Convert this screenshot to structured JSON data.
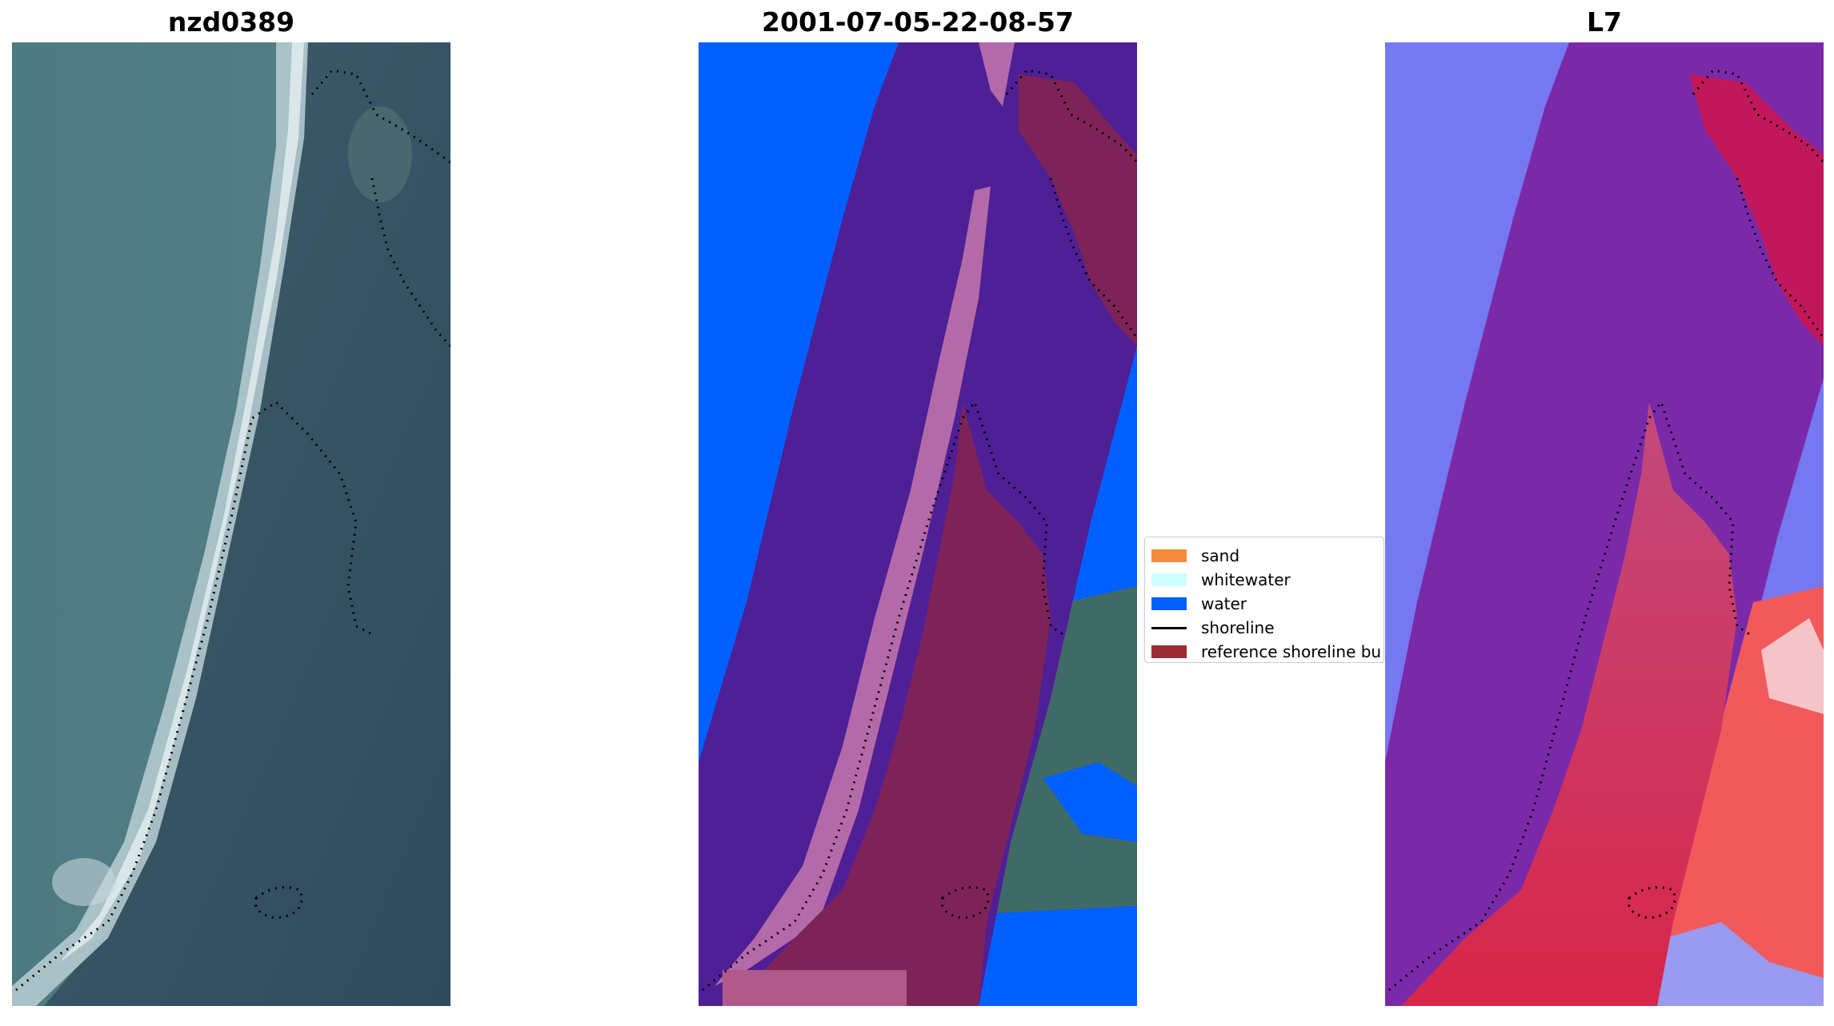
{
  "panels": [
    {
      "title": "nzd0389"
    },
    {
      "title": "2001-07-05-22-08-57"
    },
    {
      "title": "L7"
    }
  ],
  "legend": {
    "items": [
      {
        "label": "sand",
        "color": "#f58b3a"
      },
      {
        "label": "whitewater",
        "color": "#ccffff"
      },
      {
        "label": "water",
        "color": "#0060ff"
      },
      {
        "label": "shoreline",
        "color": "#000000"
      },
      {
        "label": "reference shoreline bu",
        "color": "#9c2b34"
      }
    ]
  }
}
